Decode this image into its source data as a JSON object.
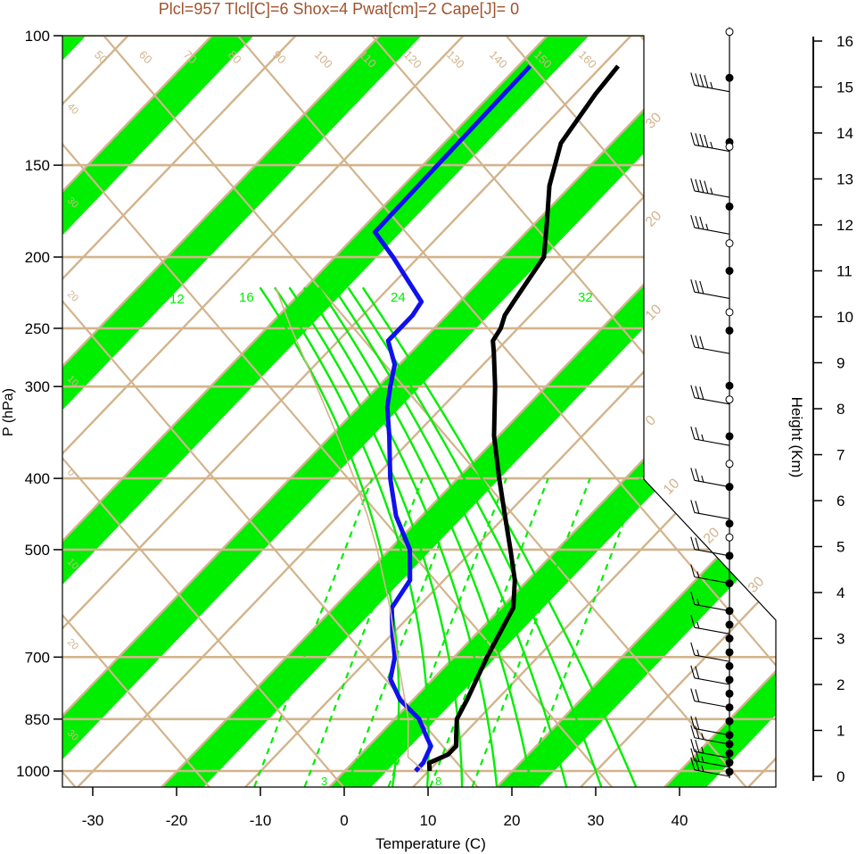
{
  "header": {
    "text": "Plcl=957 Tlcl[C]=6 Shox=4 Pwat[cm]=2 Cape[J]= 0",
    "color": "#a0522d"
  },
  "colors": {
    "band_green": "#00ee00",
    "isotherm": "#d2b48c",
    "moist_adiabat": "#00ee00",
    "temperature_profile": "#000000",
    "dewpoint_profile": "#1010ee",
    "parcel": "#d2b48c"
  },
  "chart_data": {
    "type": "line",
    "title": "",
    "xlabel": "Temperature (C)",
    "ylabel": "P (hPa)",
    "y2label": "Height (Km)",
    "xlim": [
      -34,
      52
    ],
    "ylim_hPa": [
      1050,
      100
    ],
    "y_log": true,
    "x_ticks": [
      -30,
      -20,
      -10,
      0,
      10,
      20,
      30,
      40
    ],
    "x_tick_labels": [
      "-30",
      "-20",
      "-10",
      "0",
      "10",
      "20",
      "30",
      "40"
    ],
    "pressure_ticks": [
      100,
      150,
      200,
      250,
      300,
      400,
      500,
      700,
      850,
      1000
    ],
    "pressure_tick_labels": [
      "100",
      "150",
      "200",
      "250",
      "300",
      "400",
      "500",
      "700",
      "850",
      "1000"
    ],
    "height_ticks": [
      0,
      1,
      2,
      3,
      4,
      5,
      6,
      7,
      8,
      9,
      10,
      11,
      12,
      13,
      14,
      15,
      16
    ],
    "height_tick_labels": [
      "0",
      "1",
      "2",
      "3",
      "4",
      "5",
      "6",
      "7",
      "8",
      "9",
      "10",
      "11",
      "12",
      "13",
      "14",
      "15",
      "16"
    ],
    "isotherm_labels_top": [
      "50",
      "60",
      "70",
      "80",
      "90",
      "100",
      "110",
      "120",
      "130",
      "140",
      "150",
      "160"
    ],
    "isotherm_labels_right": [
      "30",
      "20",
      "10",
      "0",
      "10",
      "20",
      "30"
    ],
    "isotherm_labels_left": [
      "40",
      "30",
      "20",
      "10",
      "0",
      "10",
      "20",
      "30"
    ],
    "moist_adiabat_labels": [
      "12",
      "16",
      "24",
      "32"
    ],
    "mixing_ratio_labels": [
      "3",
      "8"
    ],
    "series": [
      {
        "key": "temperature",
        "p": [
          1000,
          975,
          950,
          925,
          900,
          850,
          800,
          700,
          600,
          550,
          500,
          450,
          400,
          350,
          300,
          270,
          260,
          250,
          240,
          230,
          200,
          180,
          160,
          140,
          120,
          110
        ],
        "t": [
          10.2,
          9.2,
          10.5,
          10.5,
          9.5,
          7.5,
          6.5,
          4.0,
          1.5,
          -1.5,
          -5.5,
          -10.0,
          -15.0,
          -20.5,
          -26.0,
          -30.0,
          -31.5,
          -32.0,
          -33.0,
          -33.5,
          -35.0,
          -38.5,
          -42.5,
          -46.0,
          -47.5,
          -48.0
        ]
      },
      {
        "key": "dewpoint",
        "p": [
          1000,
          975,
          950,
          925,
          900,
          850,
          800,
          750,
          700,
          650,
          600,
          550,
          500,
          450,
          400,
          350,
          320,
          300,
          280,
          260,
          250,
          240,
          230,
          200,
          185,
          110
        ],
        "t": [
          8.5,
          8.5,
          8.0,
          7.5,
          6.0,
          3.0,
          -1.5,
          -5.0,
          -7.0,
          -10.0,
          -13.0,
          -14.0,
          -17.5,
          -23.0,
          -28.0,
          -33.0,
          -36.5,
          -38.5,
          -40.5,
          -44.0,
          -44.0,
          -44.0,
          -44.5,
          -53.0,
          -58.0,
          -58.5
        ]
      },
      {
        "key": "parcel",
        "p": [
          1000,
          957,
          850,
          700,
          600,
          500,
          450,
          400,
          350,
          300,
          250,
          220
        ],
        "t": [
          9.5,
          6.0,
          1.7,
          -6.7,
          -13.2,
          -21.4,
          -26.4,
          -32.3,
          -39.2,
          -47.3,
          -57.0,
          -63.5
        ]
      }
    ],
    "wind_barbs": [
      {
        "p": 1000,
        "h_km": 0.0,
        "speed_kt": 25,
        "dir_deg": 300
      },
      {
        "p": 975,
        "h_km": 0.2,
        "speed_kt": 25,
        "dir_deg": 300
      },
      {
        "p": 950,
        "h_km": 0.4,
        "speed_kt": 25,
        "dir_deg": 300
      },
      {
        "p": 925,
        "h_km": 0.7,
        "speed_kt": 25,
        "dir_deg": 290
      },
      {
        "p": 900,
        "h_km": 0.9,
        "speed_kt": 20,
        "dir_deg": 290
      },
      {
        "p": 850,
        "h_km": 1.5,
        "speed_kt": 20,
        "dir_deg": 290
      },
      {
        "p": 800,
        "h_km": 2.0,
        "speed_kt": 20,
        "dir_deg": 290
      },
      {
        "p": 750,
        "h_km": 2.5,
        "speed_kt": 15,
        "dir_deg": 290
      },
      {
        "p": 700,
        "h_km": 3.1,
        "speed_kt": 15,
        "dir_deg": 290
      },
      {
        "p": 650,
        "h_km": 3.6,
        "speed_kt": 15,
        "dir_deg": 290
      },
      {
        "p": 600,
        "h_km": 4.2,
        "speed_kt": 15,
        "dir_deg": 290
      },
      {
        "p": 550,
        "h_km": 4.8,
        "speed_kt": 20,
        "dir_deg": 300
      },
      {
        "p": 500,
        "h_km": 5.6,
        "speed_kt": 20,
        "dir_deg": 300
      },
      {
        "p": 450,
        "h_km": 6.3,
        "speed_kt": 25,
        "dir_deg": 290
      },
      {
        "p": 400,
        "h_km": 7.2,
        "speed_kt": 25,
        "dir_deg": 290
      },
      {
        "p": 350,
        "h_km": 8.1,
        "speed_kt": 30,
        "dir_deg": 290
      },
      {
        "p": 300,
        "h_km": 9.2,
        "speed_kt": 30,
        "dir_deg": 290
      },
      {
        "p": 250,
        "h_km": 10.4,
        "speed_kt": 30,
        "dir_deg": 290
      },
      {
        "p": 200,
        "h_km": 11.8,
        "speed_kt": 35,
        "dir_deg": 285
      },
      {
        "p": 175,
        "h_km": 12.6,
        "speed_kt": 45,
        "dir_deg": 285
      },
      {
        "p": 150,
        "h_km": 13.6,
        "speed_kt": 45,
        "dir_deg": 285
      },
      {
        "p": 125,
        "h_km": 14.9,
        "speed_kt": 45,
        "dir_deg": 285
      }
    ],
    "height_dots_km": [
      0.1,
      0.3,
      0.5,
      0.7,
      0.9,
      1.2,
      1.5,
      1.8,
      2.1,
      2.4,
      2.7,
      3.0,
      3.3,
      3.6,
      4.2,
      4.8,
      5.5,
      6.3,
      7.4,
      8.5,
      9.7,
      11.0,
      12.4,
      13.8,
      15.2
    ],
    "height_circles_km": [
      5.2,
      6.8,
      8.2,
      10.1,
      11.6,
      13.7,
      16.2
    ]
  }
}
